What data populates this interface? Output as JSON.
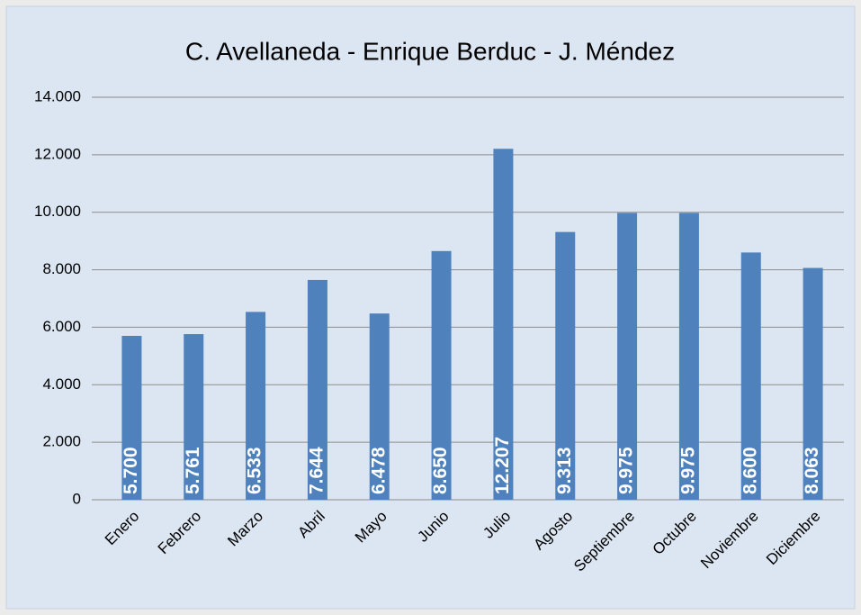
{
  "chart_data": {
    "type": "bar",
    "title": "C. Avellaneda - Enrique Berduc - J. Méndez",
    "categories": [
      "Enero",
      "Febrero",
      "Marzo",
      "Abril",
      "Mayo",
      "Junio",
      "Julio",
      "Agosto",
      "Septiembre",
      "Octubre",
      "Noviembre",
      "Diciembre"
    ],
    "values": [
      5700,
      5761,
      6533,
      7644,
      6478,
      8650,
      12207,
      9313,
      9975,
      9975,
      8600,
      8063
    ],
    "value_labels": [
      "5.700",
      "5.761",
      "6.533",
      "7.644",
      "6.478",
      "8.650",
      "12.207",
      "9.313",
      "9.975",
      "9.975",
      "8.600",
      "8.063"
    ],
    "color": "#4f81bd",
    "ylim": [
      0,
      14000
    ],
    "yticks": [
      0,
      {
        "value": 2000,
        "label": "2.000"
      },
      {
        "value": 4000,
        "label": "4.000"
      },
      {
        "value": 6000,
        "label": "6.000"
      },
      {
        "value": 8000,
        "label": "8.000"
      },
      {
        "value": 10000,
        "label": "10.000"
      },
      {
        "value": 12000,
        "label": "12.000"
      },
      {
        "value": 14000,
        "label": "14.000"
      }
    ],
    "grid": true
  }
}
